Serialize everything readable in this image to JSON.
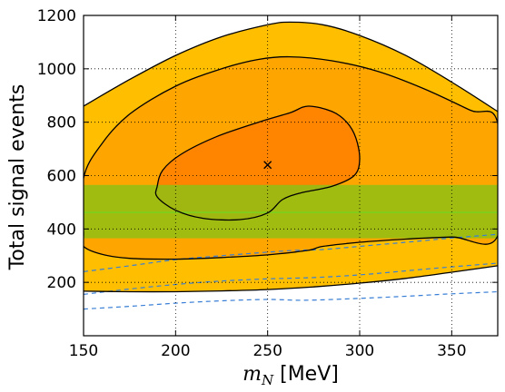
{
  "chart_data": {
    "type": "contour",
    "ylabel": "Total signal events",
    "xlabel_symbol": "m",
    "xlabel_subscript": "N",
    "xlabel_unit": " [MeV]",
    "xlim": [
      150,
      375
    ],
    "ylim": [
      0,
      1200
    ],
    "x_ticks": [
      150,
      200,
      250,
      300,
      350
    ],
    "y_ticks": [
      200,
      400,
      600,
      800,
      1000,
      1200
    ],
    "grid": true,
    "best_fit": {
      "x": 250,
      "y": 640,
      "marker": "x"
    },
    "colors": {
      "outer": "#ffbf00",
      "middle": "#ffa500",
      "inner": "#ff8400",
      "band": "#8fbf14",
      "band_center": "#7ad11e",
      "dashed": "#3a7fd6"
    },
    "band": {
      "y_low": 365,
      "y_high": 565,
      "y_center": 462
    },
    "contours": [
      {
        "name": "outer",
        "upper": [
          [
            150,
            860
          ],
          [
            175,
            960
          ],
          [
            200,
            1050
          ],
          [
            225,
            1120
          ],
          [
            250,
            1165
          ],
          [
            262,
            1175
          ],
          [
            280,
            1165
          ],
          [
            300,
            1125
          ],
          [
            325,
            1050
          ],
          [
            350,
            950
          ],
          [
            375,
            840
          ]
        ],
        "lower": [
          [
            375,
            262
          ],
          [
            350,
            238
          ],
          [
            325,
            215
          ],
          [
            300,
            197
          ],
          [
            275,
            183
          ],
          [
            250,
            173
          ],
          [
            225,
            168
          ],
          [
            200,
            165
          ],
          [
            175,
            165
          ],
          [
            150,
            167
          ]
        ]
      },
      {
        "name": "middle",
        "points": [
          [
            150,
            380
          ],
          [
            150,
            590
          ],
          [
            160,
            720
          ],
          [
            175,
            830
          ],
          [
            200,
            935
          ],
          [
            225,
            1000
          ],
          [
            245,
            1035
          ],
          [
            262,
            1045
          ],
          [
            285,
            1030
          ],
          [
            310,
            990
          ],
          [
            335,
            925
          ],
          [
            360,
            845
          ],
          [
            375,
            795
          ],
          [
            375,
            375
          ],
          [
            350,
            370
          ],
          [
            325,
            362
          ],
          [
            300,
            350
          ],
          [
            280,
            335
          ],
          [
            272,
            320
          ],
          [
            250,
            303
          ],
          [
            225,
            293
          ],
          [
            200,
            287
          ],
          [
            175,
            290
          ],
          [
            160,
            305
          ],
          [
            150,
            335
          ]
        ]
      },
      {
        "name": "inner",
        "points": [
          [
            190,
            560
          ],
          [
            193,
            620
          ],
          [
            203,
            680
          ],
          [
            222,
            745
          ],
          [
            245,
            800
          ],
          [
            262,
            835
          ],
          [
            272,
            860
          ],
          [
            285,
            840
          ],
          [
            293,
            800
          ],
          [
            298,
            740
          ],
          [
            300,
            660
          ],
          [
            297,
            600
          ],
          [
            285,
            560
          ],
          [
            268,
            535
          ],
          [
            258,
            510
          ],
          [
            250,
            460
          ],
          [
            235,
            435
          ],
          [
            215,
            440
          ],
          [
            200,
            470
          ],
          [
            190,
            520
          ]
        ]
      }
    ],
    "dashed_lines": [
      [
        [
          150,
          240
        ],
        [
          175,
          262
        ],
        [
          200,
          285
        ],
        [
          225,
          300
        ],
        [
          250,
          313
        ],
        [
          265,
          320
        ],
        [
          280,
          323
        ],
        [
          300,
          335
        ],
        [
          325,
          350
        ],
        [
          350,
          366
        ],
        [
          375,
          380
        ]
      ],
      [
        [
          150,
          155
        ],
        [
          175,
          175
        ],
        [
          200,
          192
        ],
        [
          225,
          205
        ],
        [
          250,
          213
        ],
        [
          275,
          218
        ],
        [
          300,
          228
        ],
        [
          325,
          243
        ],
        [
          350,
          258
        ],
        [
          375,
          272
        ]
      ],
      [
        [
          150,
          100
        ],
        [
          175,
          110
        ],
        [
          200,
          122
        ],
        [
          225,
          131
        ],
        [
          250,
          136
        ],
        [
          270,
          133
        ],
        [
          300,
          140
        ],
        [
          325,
          148
        ],
        [
          350,
          157
        ],
        [
          375,
          165
        ]
      ]
    ]
  }
}
